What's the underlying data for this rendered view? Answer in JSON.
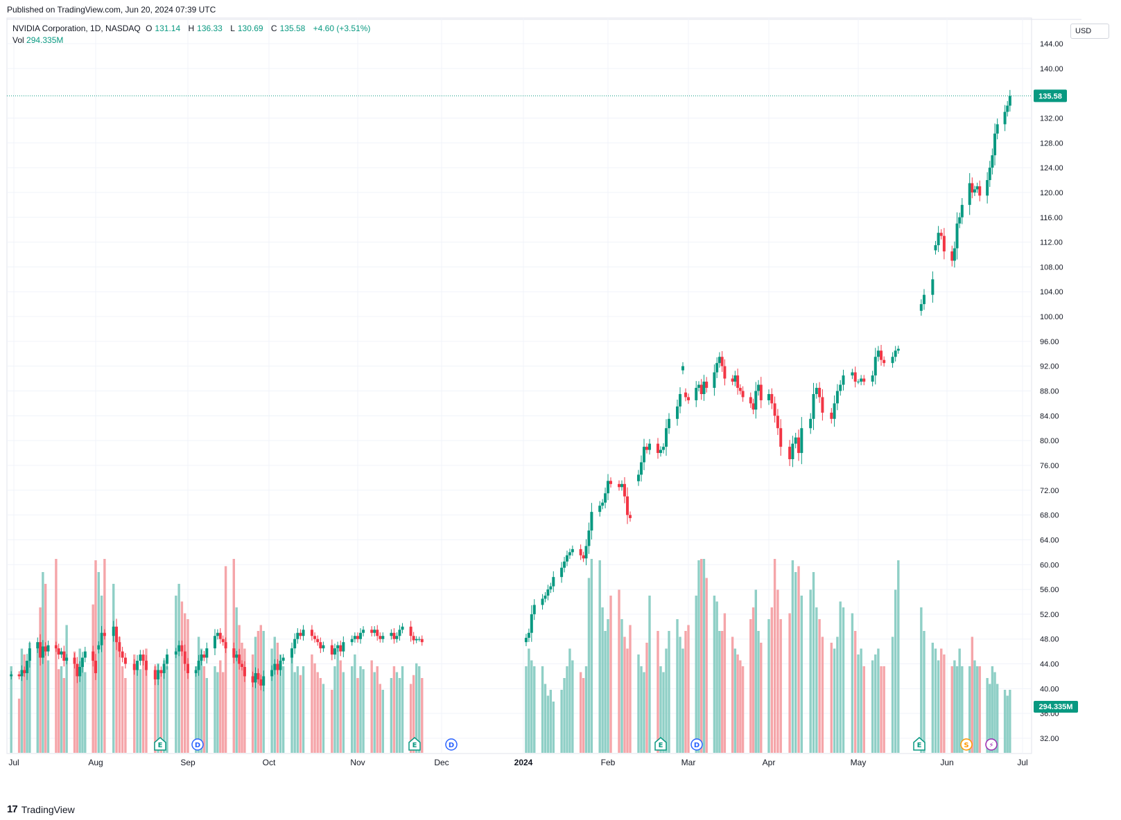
{
  "header": {
    "published": "Published on TradingView.com, Jun 20, 2024 07:39 UTC"
  },
  "legend": {
    "symbol": "NVIDIA Corporation, 1D, NASDAQ",
    "open_label": "O",
    "open": "131.14",
    "high_label": "H",
    "high": "136.33",
    "low_label": "L",
    "low": "130.69",
    "close_label": "C",
    "close": "135.58",
    "change": "+4.60 (+3.51%)",
    "vol_label": "Vol",
    "vol": "294.335M"
  },
  "currency": "USD",
  "footer": {
    "brand": "TradingView",
    "mark": "17"
  },
  "colors": {
    "up": "#089981",
    "down": "#f23645",
    "vol_up": "#8fcfc6",
    "vol_down": "#f5a5a9",
    "grid": "#f0f3fa",
    "price_line": "#089981"
  },
  "chart_data": {
    "type": "candlestick",
    "y_ticks": [
      "144.00",
      "140.00",
      "132.00",
      "128.00",
      "124.00",
      "120.00",
      "116.00",
      "112.00",
      "108.00",
      "104.00",
      "100.00",
      "96.00",
      "92.00",
      "88.00",
      "84.00",
      "80.00",
      "76.00",
      "72.00",
      "68.00",
      "64.00",
      "60.00",
      "56.00",
      "52.00",
      "48.00",
      "44.00",
      "40.00",
      "36.00",
      "32.00"
    ],
    "y_range": [
      30,
      147
    ],
    "last_price_label": "135.58",
    "last_price": 135.58,
    "volume_label": "294.335M",
    "x_labels": [
      "Jul",
      "Aug",
      "Sep",
      "Oct",
      "Nov",
      "Dec",
      "2024",
      "Feb",
      "Mar",
      "Apr",
      "May",
      "Jun",
      "Jul"
    ],
    "event_markers": [
      {
        "type": "E",
        "label": "E",
        "color": "#089981"
      },
      {
        "type": "D",
        "label": "D",
        "color": "#2962ff"
      },
      {
        "type": "E",
        "label": "E",
        "color": "#089981"
      },
      {
        "type": "D",
        "label": "D",
        "color": "#2962ff"
      },
      {
        "type": "E",
        "label": "E",
        "color": "#089981"
      },
      {
        "type": "D",
        "label": "D",
        "color": "#2962ff"
      },
      {
        "type": "E",
        "label": "E",
        "color": "#089981"
      },
      {
        "type": "S",
        "label": "S",
        "color": "#ff9800"
      },
      {
        "type": "flash",
        "label": "⚡",
        "color": "#9c27b0"
      }
    ],
    "segments": [
      {
        "start": "2023-06-30",
        "points": [
          42.3,
          42.0,
          43.0,
          42.5,
          44.5,
          46.5,
          47.5,
          45.0,
          46.8,
          46.0,
          47.0,
          46.5,
          45.5,
          46.0,
          44.5,
          45.0,
          44.0,
          42.0,
          43.5,
          45.0,
          46.0,
          44.5,
          42.5,
          47.0,
          49.0,
          48.5,
          50.0,
          47.5,
          46.0,
          45.0,
          44.0,
          43.0,
          44.5,
          45.5,
          44.5,
          43.0,
          41.5,
          43.0,
          42.5,
          44.0,
          45.5,
          46.0,
          47.0,
          46.0,
          44.0,
          42.5,
          43.0,
          44.5,
          45.5,
          45.0,
          46.5,
          48.5,
          49.0,
          48.0,
          47.5,
          46.5,
          45.0,
          45.5,
          44.0,
          43.5,
          42.0,
          41.0,
          42.5,
          41.5,
          40.5,
          42.0,
          43.0,
          44.0,
          43.0,
          44.5,
          45.0,
          46.5,
          48.0,
          49.0,
          48.5,
          49.5,
          48.5,
          48.0,
          47.5,
          46.5,
          47.0,
          45.5,
          46.5,
          47.0,
          46.0,
          47.5,
          48.0,
          48.5,
          48.0,
          49.0,
          49.5,
          49.0,
          49.5,
          48.5,
          48.0,
          48.5,
          49.0,
          48.0,
          48.5,
          49.5,
          50.0,
          48.5,
          47.8,
          48.0,
          48.0,
          47.5
        ]
      },
      {
        "start": "2024-01-02",
        "points": [
          48.2,
          49.0,
          52.0,
          53.5,
          54.5,
          55.0,
          56.0,
          56.5,
          58.0,
          59.5,
          60.5,
          61.5,
          62.0,
          62.5,
          61.5,
          61.0,
          63.0,
          65.5,
          68.5,
          69.5,
          70.0,
          71.5,
          73.5,
          73.0,
          72.5,
          73.0,
          71.0,
          68.0,
          67.5,
          74.5,
          76.5,
          79.0,
          78.5,
          79.5,
          78.0,
          78.5,
          79.0,
          82.0,
          83.5,
          85.5,
          87.5,
          92.0,
          87.0,
          86.5,
          88.5,
          89.0,
          87.5,
          89.5,
          88.5,
          91.0,
          92.5,
          93.5,
          92.0,
          90.0,
          89.5,
          90.5,
          88.5,
          88.0,
          87.0,
          86.0,
          85.0,
          88.0,
          89.0,
          86.5,
          87.5,
          86.0,
          84.0,
          82.0,
          79.0,
          77.0,
          79.5,
          80.5,
          78.0,
          82.0,
          83.5,
          87.5,
          88.5,
          87.0,
          84.5,
          83.5,
          86.0,
          88.0,
          89.0,
          90.5,
          91.0,
          89.5,
          89.5,
          90.0,
          89.5,
          90.5,
          93.5,
          94.5,
          93.0,
          92.5,
          93.5,
          94.5,
          94.8
        ]
      },
      {
        "start": "2024-05-23",
        "points": [
          102.0,
          103.5,
          106.0,
          111.5,
          113.5,
          113.0,
          110.5,
          109.0,
          111.0,
          115.0,
          116.0,
          118.0,
          121.5,
          120.0,
          120.5,
          121.0,
          119.5,
          122.0,
          124.0,
          126.0,
          129.5,
          131.0,
          133.0,
          134.0,
          135.58
        ]
      }
    ],
    "volume_samples_M": [
      300,
      245,
      330,
      320,
      300,
      340,
      335,
      400,
      460,
      440,
      310,
      510,
      295,
      300,
      280,
      370,
      325,
      285,
      330,
      300,
      290,
      405,
      480,
      460,
      420,
      620,
      440,
      365,
      350,
      300,
      280,
      320,
      305,
      295,
      310,
      330,
      300,
      305,
      290,
      310,
      300,
      420,
      440,
      410,
      390,
      380,
      300,
      350,
      330,
      300,
      280,
      300,
      290,
      310,
      290,
      470,
      530,
      400,
      370,
      340,
      330,
      320,
      350,
      360,
      370,
      360,
      330,
      350,
      340,
      320,
      300,
      315,
      290,
      300,
      285,
      300,
      320,
      305,
      290,
      280,
      270,
      260,
      300,
      330,
      310,
      290,
      300,
      320,
      280,
      300,
      295,
      310,
      290,
      300,
      270,
      260,
      280,
      300,
      290,
      280,
      300,
      270,
      285,
      305,
      300,
      280,
      300,
      330,
      310,
      300,
      300,
      270,
      250,
      260,
      240,
      260,
      280,
      300,
      330,
      310,
      290,
      280,
      300,
      450,
      500,
      480,
      400,
      360,
      380,
      420,
      430,
      380,
      350,
      330,
      370,
      320,
      300,
      290,
      340,
      420,
      360,
      300,
      290,
      330,
      360,
      380,
      350,
      330,
      360,
      370,
      420,
      480,
      500,
      520,
      450,
      420,
      410,
      360,
      360,
      390,
      350,
      330,
      320,
      310,
      300,
      380,
      400,
      430,
      360,
      340,
      380,
      400,
      610,
      430,
      380,
      390,
      480,
      460,
      470,
      420,
      430,
      460,
      400,
      380,
      350,
      340,
      330,
      350,
      410,
      400,
      390,
      360,
      320,
      330,
      300,
      310,
      320,
      330,
      300,
      300,
      350,
      430,
      480,
      400,
      360,
      340,
      330,
      310,
      330,
      320,
      300,
      310,
      300,
      330,
      300,
      300,
      350,
      310,
      300,
      300,
      280,
      270,
      300,
      290,
      270,
      260,
      250,
      260,
      280,
      290,
      330,
      310,
      290,
      300,
      350,
      520,
      560,
      430,
      360,
      330,
      320,
      310,
      300,
      290,
      300,
      470,
      350,
      320,
      320,
      330,
      310,
      300,
      290,
      260,
      300,
      285,
      295,
      294.335
    ]
  }
}
